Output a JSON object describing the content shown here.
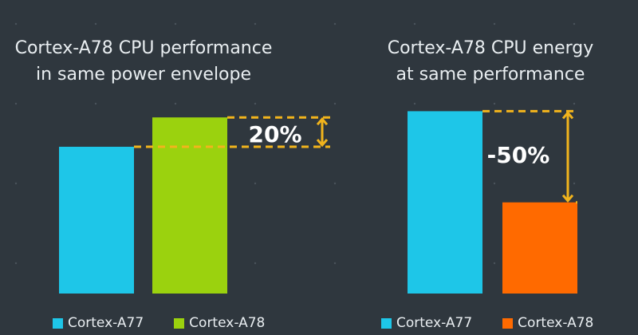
{
  "colors": {
    "background": "#2f373e",
    "cortex_a77": "#1ec6e8",
    "cortex_a78_perf": "#9bd20e",
    "cortex_a78_energy": "#ff6a00",
    "annotation": "#f2b41c",
    "text": "#e9eef1"
  },
  "chart_data": [
    {
      "type": "bar",
      "title": [
        "Cortex-A78 CPU performance",
        "in same power envelope"
      ],
      "categories": [
        "Cortex-A77",
        "Cortex-A78"
      ],
      "values": [
        1.0,
        1.2
      ],
      "ylim": [
        0,
        1.25
      ],
      "grid": false,
      "legend": {
        "placement": "bottom",
        "entries": [
          "Cortex-A77",
          "Cortex-A78"
        ]
      },
      "annotation": {
        "label": "20%",
        "from_category": "Cortex-A77",
        "to_category": "Cortex-A78"
      }
    },
    {
      "type": "bar",
      "title": [
        "Cortex-A78 CPU energy",
        "at same performance"
      ],
      "categories": [
        "Cortex-A77",
        "Cortex-A78"
      ],
      "values": [
        1.0,
        0.5
      ],
      "ylim": [
        0,
        1.05
      ],
      "grid": false,
      "legend": {
        "placement": "bottom",
        "entries": [
          "Cortex-A77",
          "Cortex-A78"
        ]
      },
      "annotation": {
        "label": "-50%",
        "from_category": "Cortex-A77",
        "to_category": "Cortex-A78"
      }
    }
  ]
}
